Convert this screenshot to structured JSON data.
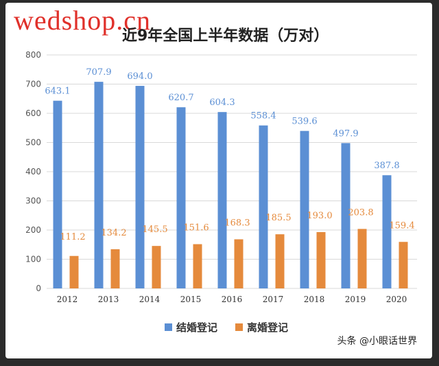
{
  "watermark": "wedshop.cn",
  "credit": "头条 @小眼话世界",
  "chart_data": {
    "type": "bar",
    "title": "近9年全国上半年数据（万对）",
    "categories": [
      "2012",
      "2013",
      "2014",
      "2015",
      "2016",
      "2017",
      "2018",
      "2019",
      "2020"
    ],
    "series": [
      {
        "name": "结婚登记",
        "color": "#5b8fd4",
        "labelColor": "#5b8fd4",
        "values": [
          643.1,
          707.9,
          694.0,
          620.7,
          604.3,
          558.4,
          539.6,
          497.9,
          387.8
        ],
        "labels": [
          "643.1",
          "707.9",
          "694.0",
          "620.7",
          "604.3",
          "558.4",
          "539.6",
          "497.9",
          "387.8"
        ]
      },
      {
        "name": "离婚登记",
        "color": "#e58a3c",
        "labelColor": "#e58a3c",
        "values": [
          111.2,
          134.2,
          145.5,
          151.6,
          168.3,
          185.5,
          193.0,
          203.8,
          159.4
        ],
        "labels": [
          "111.2",
          "134.2",
          "145.5",
          "151.6",
          "168.3",
          "185.5",
          "193.0",
          "203.8",
          "159.4"
        ]
      }
    ],
    "yticks": [
      "0",
      "100",
      "200",
      "300",
      "400",
      "500",
      "600",
      "700",
      "800"
    ],
    "ylim": [
      0,
      800
    ],
    "grid": true,
    "legend": "bottom"
  }
}
